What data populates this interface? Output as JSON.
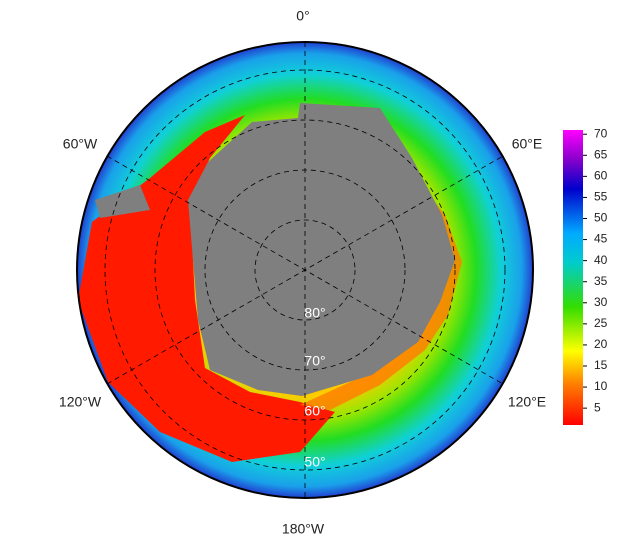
{
  "map": {
    "longitude_labels": [
      "0°",
      "60°E",
      "120°E",
      "180°W",
      "120°W",
      "60°W"
    ],
    "latitude_labels": [
      "80°",
      "70°",
      "60°",
      "50°"
    ],
    "colorbar": {
      "ylim": [
        1,
        71
      ],
      "yticks": [
        5,
        10,
        15,
        20,
        25,
        30,
        35,
        40,
        45,
        50,
        55,
        60,
        65,
        70
      ]
    }
  }
}
